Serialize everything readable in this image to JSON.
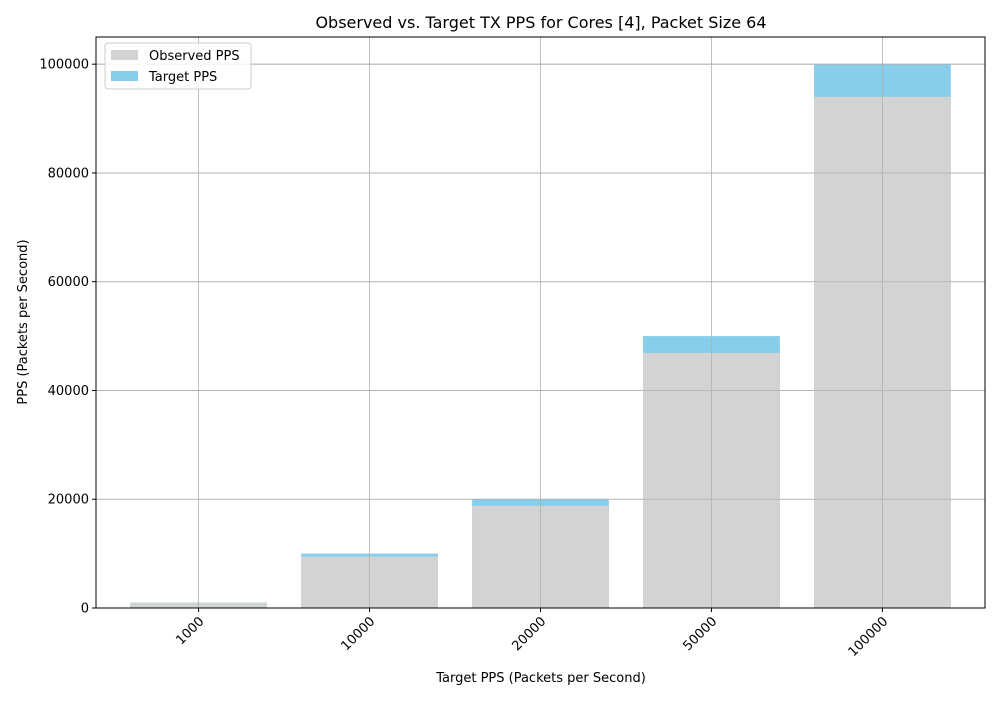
{
  "chart_data": {
    "type": "bar",
    "title": "Observed vs. Target TX PPS for Cores [4], Packet Size 64",
    "xlabel": "Target PPS (Packets per Second)",
    "ylabel": "PPS (Packets per Second)",
    "categories": [
      "1000",
      "10000",
      "20000",
      "50000",
      "100000"
    ],
    "series": [
      {
        "name": "Observed PPS",
        "color": "#d3d3d3",
        "values": [
          950,
          9450,
          18800,
          46900,
          94000
        ]
      },
      {
        "name": "Target PPS",
        "color": "#87ceeb",
        "values": [
          1000,
          10000,
          20000,
          50000,
          100000
        ]
      }
    ],
    "ylim": [
      0,
      105000
    ],
    "yticks": [
      0,
      20000,
      40000,
      60000,
      80000,
      100000
    ],
    "grid": true,
    "legend": "top-left"
  }
}
